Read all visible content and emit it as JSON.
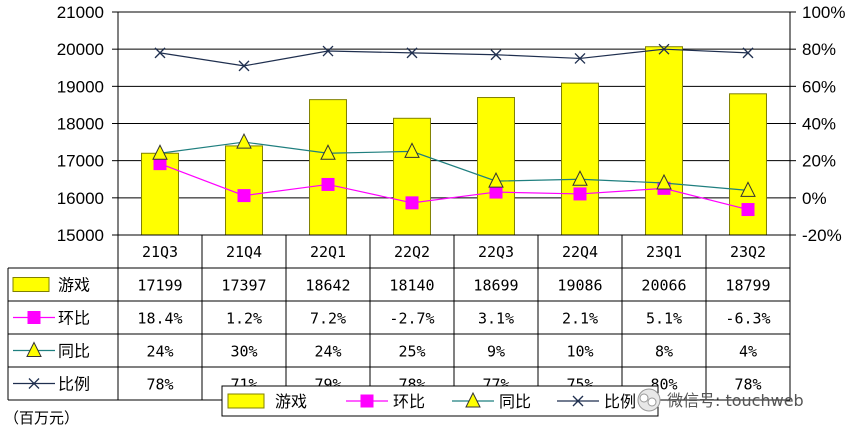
{
  "unit_label": "（百万元）",
  "watermark": "微信号: touchweb",
  "colors": {
    "bar_fill": "#ffff00",
    "bar_stroke": "#808000",
    "qoq_line": "#ff00ff",
    "qoq_marker": "#ff00ff",
    "yoy_line": "#1f7f7f",
    "yoy_marker": "#ffff00",
    "ratio_line": "#1f2f4f"
  },
  "chart_data": {
    "type": "bar",
    "categories": [
      "21Q3",
      "21Q4",
      "22Q1",
      "22Q2",
      "22Q3",
      "22Q4",
      "23Q1",
      "23Q2"
    ],
    "left_axis": {
      "ylim": [
        15000,
        21000
      ],
      "ticks": [
        "15000",
        "16000",
        "17000",
        "18000",
        "19000",
        "20000",
        "21000"
      ]
    },
    "right_axis": {
      "ylim": [
        -20,
        100
      ],
      "ticks": [
        "-20%",
        "0%",
        "20%",
        "40%",
        "60%",
        "80%",
        "100%"
      ]
    },
    "grid": true,
    "legend_position": "bottom",
    "series": [
      {
        "name": "游戏",
        "type": "bar",
        "axis": "left",
        "values": [
          17199,
          17397,
          18642,
          18140,
          18699,
          19086,
          20066,
          18799
        ],
        "labels": [
          "17199",
          "17397",
          "18642",
          "18140",
          "18699",
          "19086",
          "20066",
          "18799"
        ]
      },
      {
        "name": "环比",
        "type": "line",
        "axis": "right",
        "marker": "square",
        "values": [
          18.4,
          1.2,
          7.2,
          -2.7,
          3.1,
          2.1,
          5.1,
          -6.3
        ],
        "labels": [
          "18.4%",
          "1.2%",
          "7.2%",
          "-2.7%",
          "3.1%",
          "2.1%",
          "5.1%",
          "-6.3%"
        ]
      },
      {
        "name": "同比",
        "type": "line",
        "axis": "right",
        "marker": "triangle",
        "values": [
          24,
          30,
          24,
          25,
          9,
          10,
          8,
          4
        ],
        "labels": [
          "24%",
          "30%",
          "24%",
          "25%",
          "9%",
          "10%",
          "8%",
          "4%"
        ]
      },
      {
        "name": "比例",
        "type": "line",
        "axis": "right",
        "marker": "x",
        "values": [
          78,
          71,
          79,
          78,
          77,
          75,
          80,
          78
        ],
        "labels": [
          "78%",
          "71%",
          "79%",
          "78%",
          "77%",
          "75%",
          "80%",
          "78%"
        ]
      }
    ],
    "legend": [
      "游戏",
      "环比",
      "同比",
      "比例"
    ]
  }
}
